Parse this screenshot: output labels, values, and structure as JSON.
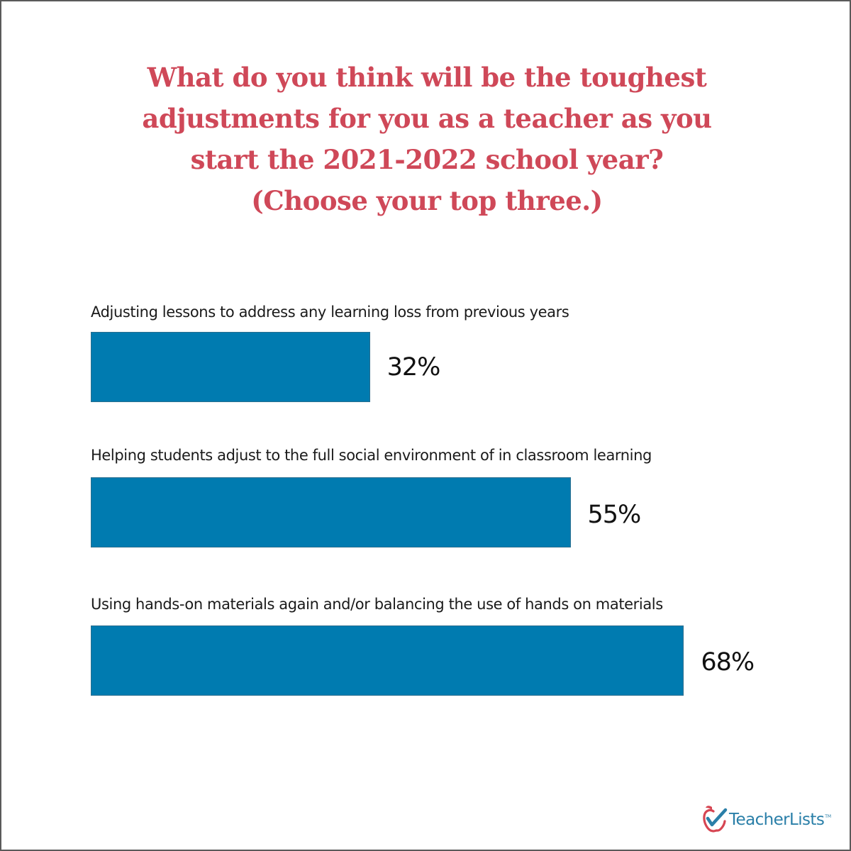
{
  "title_lines": [
    "What do you think will be the toughest",
    "adjustments for you as a teacher as you",
    "start the 2021-2022 school year?",
    "(Choose your top three.)"
  ],
  "colors": {
    "title": "#cf4858",
    "bar": "#007bb0",
    "value_text": "#111111",
    "border": "#5a5a5a",
    "logo_blue": "#2a7fa8",
    "logo_red": "#d64552"
  },
  "chart_data": {
    "type": "bar",
    "orientation": "horizontal",
    "title": "What do you think will be the toughest adjustments for you as a teacher as you start the 2021-2022 school year? (Choose your top three.)",
    "categories": [
      "Adjusting lessons to address any learning loss from previous years",
      "Helping students adjust to the full social environment of in classroom learning",
      "Using hands-on materials again and/or balancing the use of hands on materials"
    ],
    "values": [
      32,
      55,
      68
    ],
    "value_labels": [
      "32%",
      "55%",
      "68%"
    ],
    "unit": "%",
    "xlabel": "",
    "ylabel": "",
    "grid": false,
    "legend": null
  },
  "bars": [
    {
      "label": "Adjusting lessons to address any learning loss from previous years",
      "value": 32,
      "value_label": "32%"
    },
    {
      "label": "Helping students adjust to the full social environment of in classroom learning",
      "value": 55,
      "value_label": "55%"
    },
    {
      "label": "Using hands-on materials again and/or balancing the use of hands on materials",
      "value": 68,
      "value_label": "68%"
    }
  ],
  "logo": {
    "text": "TeacherLists",
    "tm": "TM",
    "icon": "apple-checkmark-icon"
  }
}
